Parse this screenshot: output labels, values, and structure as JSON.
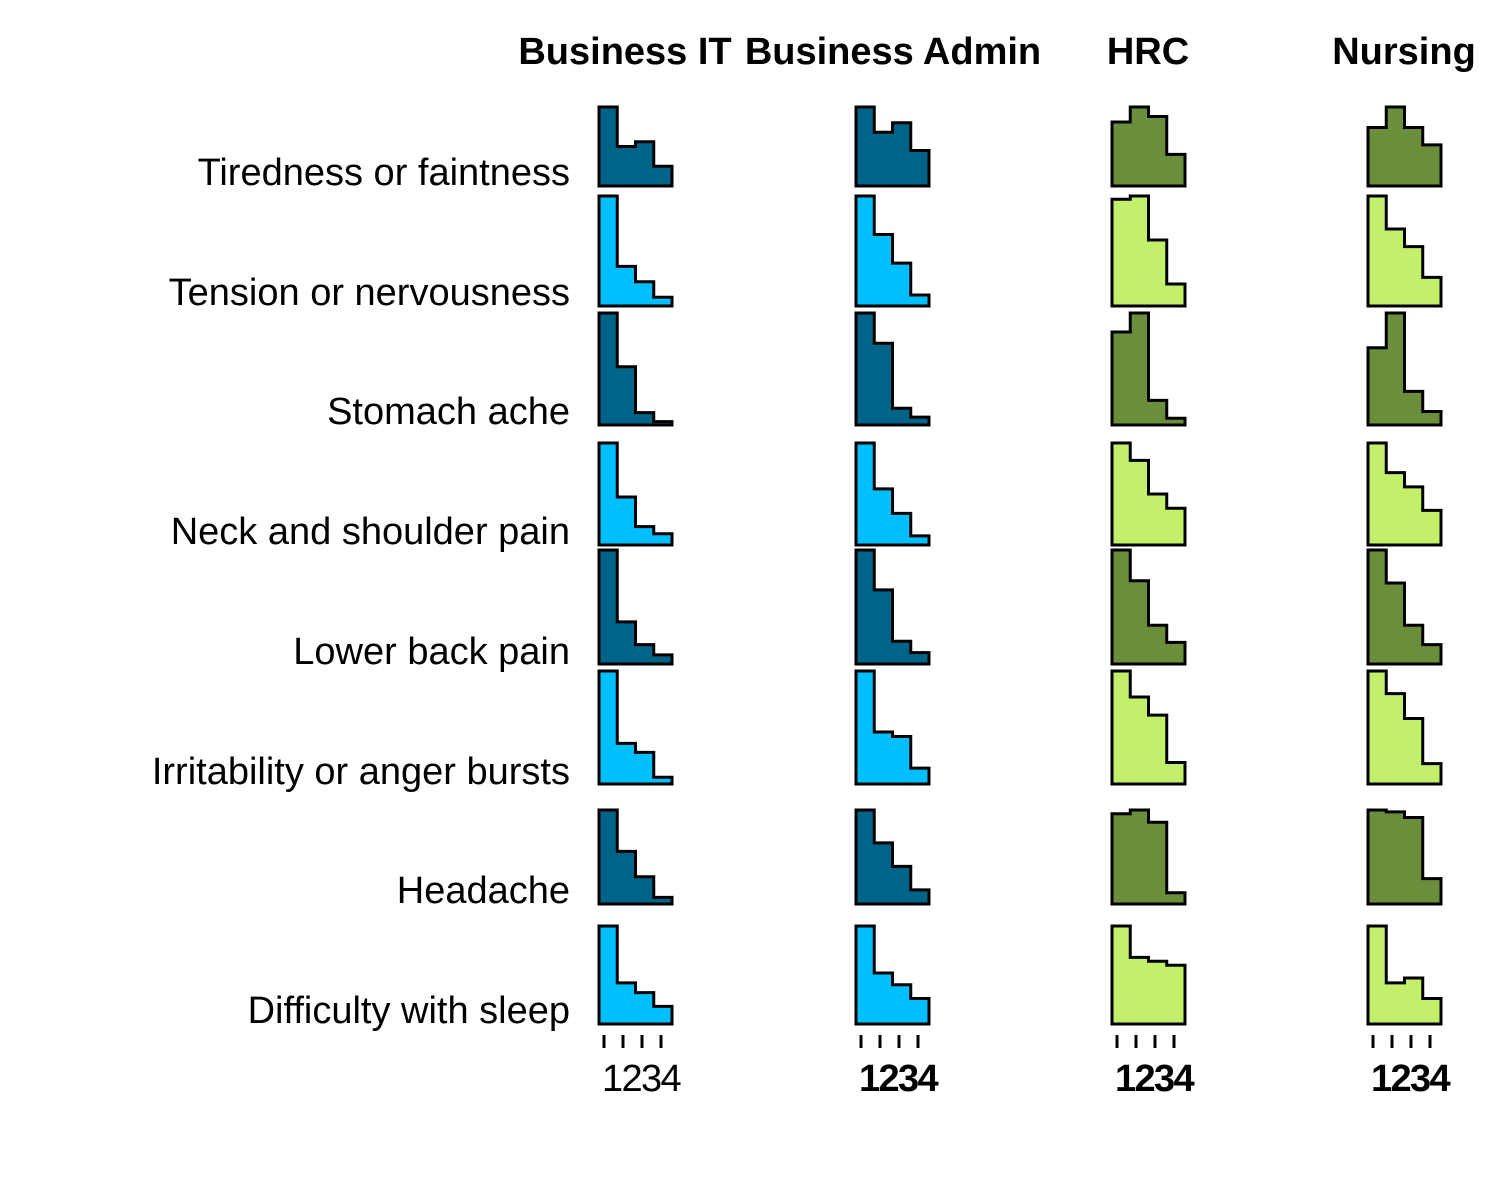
{
  "chart_data": {
    "type": "bar",
    "categories": [
      "1",
      "2",
      "3",
      "4"
    ],
    "rows": [
      "Tiredness or faintness",
      "Tension or nervousness",
      "Stomach ache",
      "Neck and shoulder pain",
      "Lower back pain",
      "Irritability or anger bursts",
      "Headache",
      "Difficulty with sleep"
    ],
    "series": [
      {
        "name": "Business IT",
        "colors": [
          "#006489",
          "#00BFFF"
        ],
        "values": [
          [
            1.0,
            0.5,
            0.56,
            0.25
          ],
          [
            1.0,
            0.36,
            0.22,
            0.08
          ],
          [
            1.0,
            0.52,
            0.11,
            0.03
          ],
          [
            1.0,
            0.47,
            0.18,
            0.11
          ],
          [
            1.0,
            0.37,
            0.17,
            0.08
          ],
          [
            1.0,
            0.36,
            0.28,
            0.06
          ],
          [
            1.0,
            0.56,
            0.29,
            0.07
          ],
          [
            1.0,
            0.42,
            0.32,
            0.18
          ]
        ]
      },
      {
        "name": "Business Admin",
        "colors": [
          "#006489",
          "#00BFFF"
        ],
        "values": [
          [
            1.0,
            0.68,
            0.8,
            0.45
          ],
          [
            1.0,
            0.65,
            0.39,
            0.1
          ],
          [
            1.0,
            0.73,
            0.15,
            0.07
          ],
          [
            1.0,
            0.55,
            0.31,
            0.09
          ],
          [
            1.0,
            0.65,
            0.2,
            0.1
          ],
          [
            1.0,
            0.46,
            0.42,
            0.14
          ],
          [
            1.0,
            0.65,
            0.4,
            0.15
          ],
          [
            1.0,
            0.52,
            0.4,
            0.26
          ]
        ]
      },
      {
        "name": "HRC",
        "colors": [
          "#6B8E3D",
          "#C2F06B"
        ],
        "values": [
          [
            0.81,
            1.0,
            0.88,
            0.4
          ],
          [
            0.97,
            1.0,
            0.6,
            0.2
          ],
          [
            0.83,
            1.0,
            0.22,
            0.06
          ],
          [
            1.0,
            0.83,
            0.5,
            0.36
          ],
          [
            1.0,
            0.73,
            0.34,
            0.19
          ],
          [
            1.0,
            0.77,
            0.61,
            0.19
          ],
          [
            0.96,
            1.0,
            0.87,
            0.12
          ],
          [
            1.0,
            0.68,
            0.64,
            0.6
          ]
        ]
      },
      {
        "name": "Nursing",
        "colors": [
          "#6B8E3D",
          "#C2F06B"
        ],
        "values": [
          [
            0.74,
            1.0,
            0.74,
            0.52
          ],
          [
            1.0,
            0.7,
            0.54,
            0.26
          ],
          [
            0.69,
            1.0,
            0.3,
            0.12
          ],
          [
            1.0,
            0.71,
            0.57,
            0.34
          ],
          [
            1.0,
            0.71,
            0.34,
            0.17
          ],
          [
            1.0,
            0.8,
            0.58,
            0.18
          ],
          [
            1.0,
            0.98,
            0.92,
            0.27
          ],
          [
            1.0,
            0.42,
            0.47,
            0.26
          ]
        ]
      }
    ],
    "xlabel": "",
    "ylabel": "",
    "grid": false,
    "legend": "none"
  }
}
